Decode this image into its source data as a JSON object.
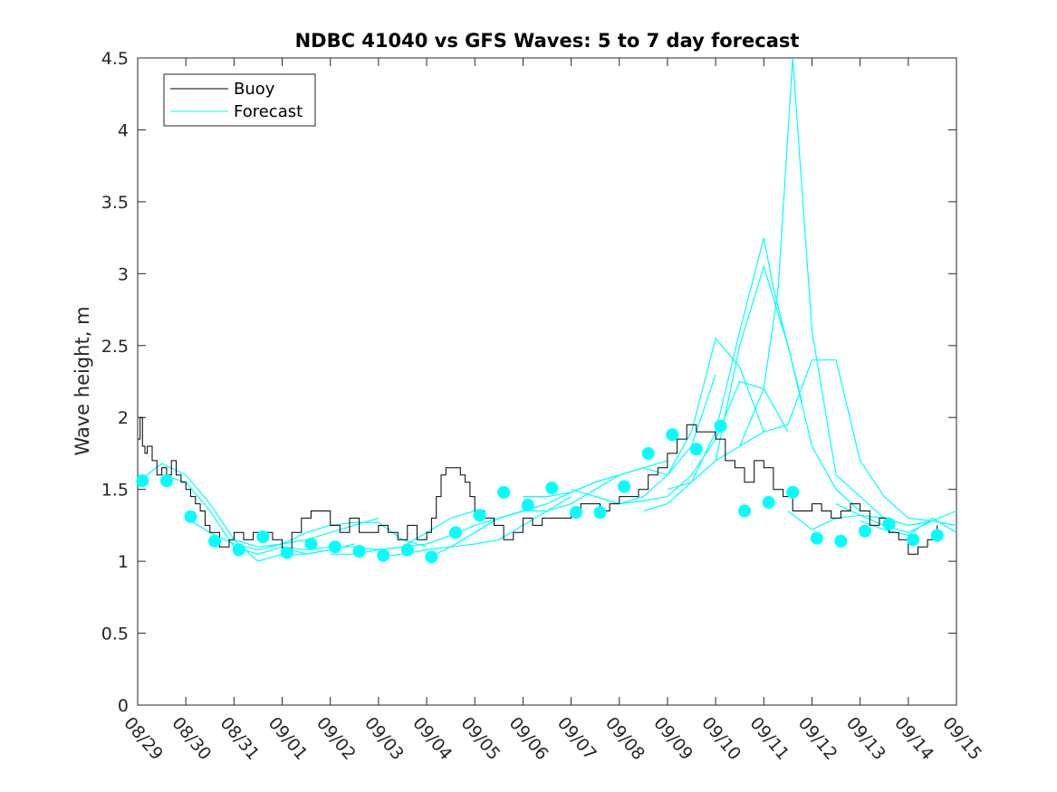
{
  "chart_data": {
    "type": "line",
    "title": "NDBC 41040 vs GFS Waves: 5 to 7 day forecast",
    "xlabel": "",
    "ylabel": "Wave height, m",
    "ylim": [
      0,
      4.5
    ],
    "xlim": [
      0,
      17
    ],
    "yticks": [
      0,
      0.5,
      1,
      1.5,
      2,
      2.5,
      3,
      3.5,
      4,
      4.5
    ],
    "ytick_labels": [
      "0",
      "0.5",
      "1",
      "1.5",
      "2",
      "2.5",
      "3",
      "3.5",
      "4",
      "4.5"
    ],
    "xticks": [
      0,
      1,
      2,
      3,
      4,
      5,
      6,
      7,
      8,
      9,
      10,
      11,
      12,
      13,
      14,
      15,
      16,
      17
    ],
    "xtick_labels": [
      "08/29",
      "08/30",
      "08/31",
      "09/01",
      "09/02",
      "09/03",
      "09/04",
      "09/05",
      "09/06",
      "09/07",
      "09/08",
      "09/09",
      "09/10",
      "09/11",
      "09/12",
      "09/13",
      "09/14",
      "09/15"
    ],
    "legend": {
      "position": "top-left",
      "entries": [
        "Buoy",
        "Forecast"
      ]
    },
    "colors": {
      "buoy": "#000000",
      "forecast": "#00ffff",
      "axes": "#262626"
    },
    "buoy": {
      "x": [
        0,
        0.05,
        0.1,
        0.15,
        0.2,
        0.3,
        0.4,
        0.5,
        0.6,
        0.7,
        0.8,
        0.9,
        1.0,
        1.1,
        1.2,
        1.3,
        1.4,
        1.5,
        1.6,
        1.7,
        1.8,
        1.9,
        2.0,
        2.2,
        2.4,
        2.6,
        2.8,
        3.0,
        3.2,
        3.4,
        3.6,
        3.8,
        4.0,
        4.2,
        4.4,
        4.6,
        4.8,
        5.0,
        5.2,
        5.4,
        5.6,
        5.8,
        6.0,
        6.1,
        6.2,
        6.3,
        6.4,
        6.5,
        6.6,
        6.7,
        6.8,
        6.9,
        7.0,
        7.2,
        7.4,
        7.6,
        7.8,
        8.0,
        8.2,
        8.4,
        8.6,
        8.8,
        9.0,
        9.2,
        9.4,
        9.6,
        9.8,
        10.0,
        10.2,
        10.4,
        10.6,
        10.8,
        11.0,
        11.2,
        11.4,
        11.6,
        11.8,
        12.0,
        12.2,
        12.4,
        12.6,
        12.8,
        13.0,
        13.2,
        13.4,
        13.6,
        13.8,
        14.0,
        14.2,
        14.4,
        14.6,
        14.8,
        15.0,
        15.2,
        15.4,
        15.6,
        15.8,
        16.0,
        16.2,
        16.4,
        16.6
      ],
      "y": [
        1.85,
        2.0,
        1.8,
        1.75,
        1.8,
        1.7,
        1.6,
        1.65,
        1.6,
        1.7,
        1.6,
        1.55,
        1.5,
        1.45,
        1.4,
        1.35,
        1.25,
        1.2,
        1.2,
        1.1,
        1.1,
        1.15,
        1.2,
        1.15,
        1.2,
        1.2,
        1.15,
        1.05,
        1.2,
        1.3,
        1.35,
        1.35,
        1.25,
        1.2,
        1.3,
        1.2,
        1.2,
        1.25,
        1.2,
        1.15,
        1.25,
        1.15,
        1.2,
        1.3,
        1.45,
        1.6,
        1.65,
        1.65,
        1.65,
        1.6,
        1.55,
        1.45,
        1.35,
        1.3,
        1.25,
        1.15,
        1.2,
        1.3,
        1.25,
        1.3,
        1.3,
        1.3,
        1.35,
        1.4,
        1.4,
        1.35,
        1.4,
        1.45,
        1.45,
        1.5,
        1.6,
        1.65,
        1.75,
        1.85,
        1.95,
        1.9,
        1.9,
        1.85,
        1.7,
        1.65,
        1.55,
        1.7,
        1.65,
        1.5,
        1.45,
        1.35,
        1.35,
        1.4,
        1.35,
        1.3,
        1.35,
        1.4,
        1.35,
        1.25,
        1.3,
        1.2,
        1.15,
        1.05,
        1.1,
        1.15,
        1.25
      ]
    },
    "forecast_series": [
      {
        "name": "Forecast 1",
        "x": [
          0,
          0.5,
          1.0,
          1.5,
          2.0,
          2.5,
          3.0,
          3.5,
          4.0
        ],
        "y": [
          1.55,
          1.68,
          1.6,
          1.4,
          1.15,
          1.0,
          1.05,
          1.05,
          1.08
        ]
      },
      {
        "name": "Forecast 2",
        "x": [
          0.5,
          1.0,
          1.5,
          2.0,
          2.5,
          3.0,
          3.5,
          4.0,
          4.5
        ],
        "y": [
          1.6,
          1.55,
          1.35,
          1.1,
          1.05,
          1.1,
          1.05,
          1.08,
          1.12
        ]
      },
      {
        "name": "Forecast 3",
        "x": [
          1.0,
          1.5,
          2.0,
          2.5,
          3.0,
          3.5,
          4.0,
          4.5,
          5.0
        ],
        "y": [
          1.3,
          1.2,
          1.12,
          1.08,
          1.12,
          1.15,
          1.2,
          1.25,
          1.3
        ]
      },
      {
        "name": "Forecast 4",
        "x": [
          2.0,
          2.5,
          3.0,
          3.5,
          4.0,
          4.5,
          5.0,
          5.5,
          6.0
        ],
        "y": [
          1.15,
          1.1,
          1.12,
          1.2,
          1.25,
          1.27,
          1.27,
          1.15,
          1.1
        ]
      },
      {
        "name": "Forecast 5",
        "x": [
          3.0,
          3.5,
          4.0,
          4.5,
          5.0,
          5.5,
          6.0,
          6.5,
          7.0
        ],
        "y": [
          1.1,
          1.08,
          1.1,
          1.1,
          1.08,
          1.1,
          1.2,
          1.3,
          1.35
        ]
      },
      {
        "name": "Forecast 6",
        "x": [
          4.0,
          4.5,
          5.0,
          5.5,
          6.0,
          6.5,
          7.0,
          7.5,
          8.0
        ],
        "y": [
          1.05,
          1.05,
          1.08,
          1.1,
          1.12,
          1.18,
          1.25,
          1.3,
          1.35
        ]
      },
      {
        "name": "Forecast 7",
        "x": [
          5.0,
          5.5,
          6.0,
          6.5,
          7.0,
          7.5,
          8.0,
          8.5,
          9.0
        ],
        "y": [
          1.03,
          1.05,
          1.08,
          1.1,
          1.12,
          1.15,
          1.25,
          1.35,
          1.45
        ]
      },
      {
        "name": "Forecast 8",
        "x": [
          6.0,
          6.5,
          7.0,
          7.5,
          8.0,
          8.5,
          9.0,
          9.5,
          10.0
        ],
        "y": [
          1.02,
          1.1,
          1.2,
          1.3,
          1.35,
          1.4,
          1.48,
          1.55,
          1.6
        ]
      },
      {
        "name": "Forecast 9",
        "x": [
          7.0,
          7.5,
          8.0,
          8.5,
          9.0,
          9.5,
          10.0,
          10.5,
          11.0
        ],
        "y": [
          1.2,
          1.3,
          1.35,
          1.35,
          1.4,
          1.5,
          1.6,
          1.65,
          1.7
        ]
      },
      {
        "name": "Forecast 10",
        "x": [
          8.0,
          8.5,
          9.0,
          9.5,
          10.0,
          10.5,
          11.0,
          11.5,
          12.0
        ],
        "y": [
          1.45,
          1.45,
          1.48,
          1.55,
          1.6,
          1.65,
          1.6,
          1.8,
          2.3
        ]
      },
      {
        "name": "Forecast 11",
        "x": [
          9.0,
          9.5,
          10.0,
          10.5,
          11.0,
          11.5,
          12.0,
          12.5,
          13.0
        ],
        "y": [
          1.5,
          1.45,
          1.4,
          1.45,
          1.6,
          1.9,
          2.55,
          2.35,
          1.9
        ]
      },
      {
        "name": "Forecast 12",
        "x": [
          9.5,
          10.0,
          10.5,
          11.0,
          11.5,
          12.0,
          12.5,
          13.0,
          13.5
        ],
        "y": [
          1.45,
          1.4,
          1.42,
          1.45,
          1.6,
          1.85,
          2.25,
          2.2,
          1.9
        ]
      },
      {
        "name": "Forecast 13",
        "x": [
          10.5,
          11.0,
          11.5,
          12.0,
          12.5,
          13.0,
          13.2,
          13.5,
          13.8
        ],
        "y": [
          1.35,
          1.4,
          1.55,
          1.9,
          2.6,
          3.25,
          2.9,
          2.5,
          2.1
        ]
      },
      {
        "name": "Forecast 14",
        "x": [
          11.0,
          11.5,
          12.0,
          12.5,
          13.0,
          13.5,
          14.0,
          14.5,
          15.0
        ],
        "y": [
          1.5,
          1.55,
          1.7,
          2.5,
          3.05,
          2.5,
          1.8,
          1.5,
          1.35
        ]
      },
      {
        "name": "Forecast 15",
        "x": [
          12.0,
          12.5,
          13.0,
          13.3,
          13.6,
          14.0,
          14.5,
          15.0,
          15.5
        ],
        "y": [
          1.7,
          1.8,
          2.2,
          2.9,
          4.5,
          2.6,
          1.6,
          1.45,
          1.3
        ]
      },
      {
        "name": "Forecast 16",
        "x": [
          12.5,
          13.0,
          13.5,
          14.0,
          14.5,
          15.0,
          15.5,
          16.0,
          16.5
        ],
        "y": [
          1.8,
          1.9,
          1.95,
          2.4,
          2.4,
          1.7,
          1.45,
          1.3,
          1.28
        ]
      },
      {
        "name": "Forecast 17",
        "x": [
          13.5,
          14.0,
          14.5,
          15.0,
          15.5,
          16.0,
          16.5,
          17.0
        ],
        "y": [
          1.35,
          1.22,
          1.3,
          1.32,
          1.3,
          1.25,
          1.28,
          1.35
        ]
      },
      {
        "name": "Forecast 18",
        "x": [
          14.5,
          15.0,
          15.5,
          16.0,
          16.5,
          17.0
        ],
        "y": [
          1.4,
          1.32,
          1.25,
          1.2,
          1.28,
          1.25
        ]
      },
      {
        "name": "Forecast 19",
        "x": [
          15.0,
          15.5,
          16.0,
          16.5,
          17.0
        ],
        "y": [
          1.28,
          1.22,
          1.18,
          1.3,
          1.2
        ]
      }
    ],
    "forecast_points": {
      "x": [
        0.1,
        0.6,
        1.1,
        1.6,
        2.1,
        2.6,
        3.1,
        3.6,
        4.1,
        4.6,
        5.1,
        5.6,
        6.1,
        6.6,
        7.1,
        7.6,
        8.1,
        8.6,
        9.1,
        9.6,
        10.1,
        10.6,
        11.1,
        11.6,
        12.1,
        12.6,
        13.1,
        13.6,
        14.1,
        14.6,
        15.1,
        15.6,
        16.1,
        16.6
      ],
      "y": [
        1.56,
        1.56,
        1.31,
        1.14,
        1.08,
        1.17,
        1.06,
        1.12,
        1.1,
        1.07,
        1.04,
        1.08,
        1.03,
        1.2,
        1.32,
        1.48,
        1.39,
        1.51,
        1.34,
        1.34,
        1.52,
        1.75,
        1.88,
        1.78,
        1.94,
        1.35,
        1.41,
        1.48,
        1.16,
        1.14,
        1.21,
        1.26,
        1.15,
        1.18
      ]
    }
  }
}
